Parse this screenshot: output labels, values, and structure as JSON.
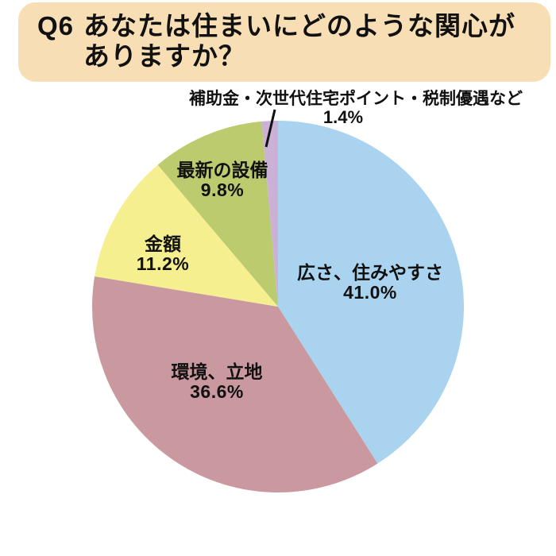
{
  "header": {
    "q": "Q6",
    "line1": "あなたは住まいにどのような関心が",
    "line2": "ありますか？",
    "bg_color": "#F8DEB4"
  },
  "chart_data": {
    "type": "pie",
    "title": "Q6 あなたは住まいにどのような関心がありますか？",
    "unit": "%",
    "start_angle_deg": 0,
    "direction": "clockwise",
    "slices": [
      {
        "label": "広さ、住みやすさ",
        "value": 41.0,
        "pct_label": "41.0%",
        "color": "#A9D3EE"
      },
      {
        "label": "環境、立地",
        "value": 36.6,
        "pct_label": "36.6%",
        "color": "#CA99A0"
      },
      {
        "label": "金額",
        "value": 11.2,
        "pct_label": "11.2%",
        "color": "#F5EF90"
      },
      {
        "label": "最新の設備",
        "value": 9.8,
        "pct_label": "9.8%",
        "color": "#BDCB6F"
      },
      {
        "label": "補助金・次世代住宅ポイント・税制優遇など",
        "value": 1.4,
        "pct_label": "1.4%",
        "color": "#CBB1D6"
      }
    ],
    "leader_line_color": "#111111"
  }
}
